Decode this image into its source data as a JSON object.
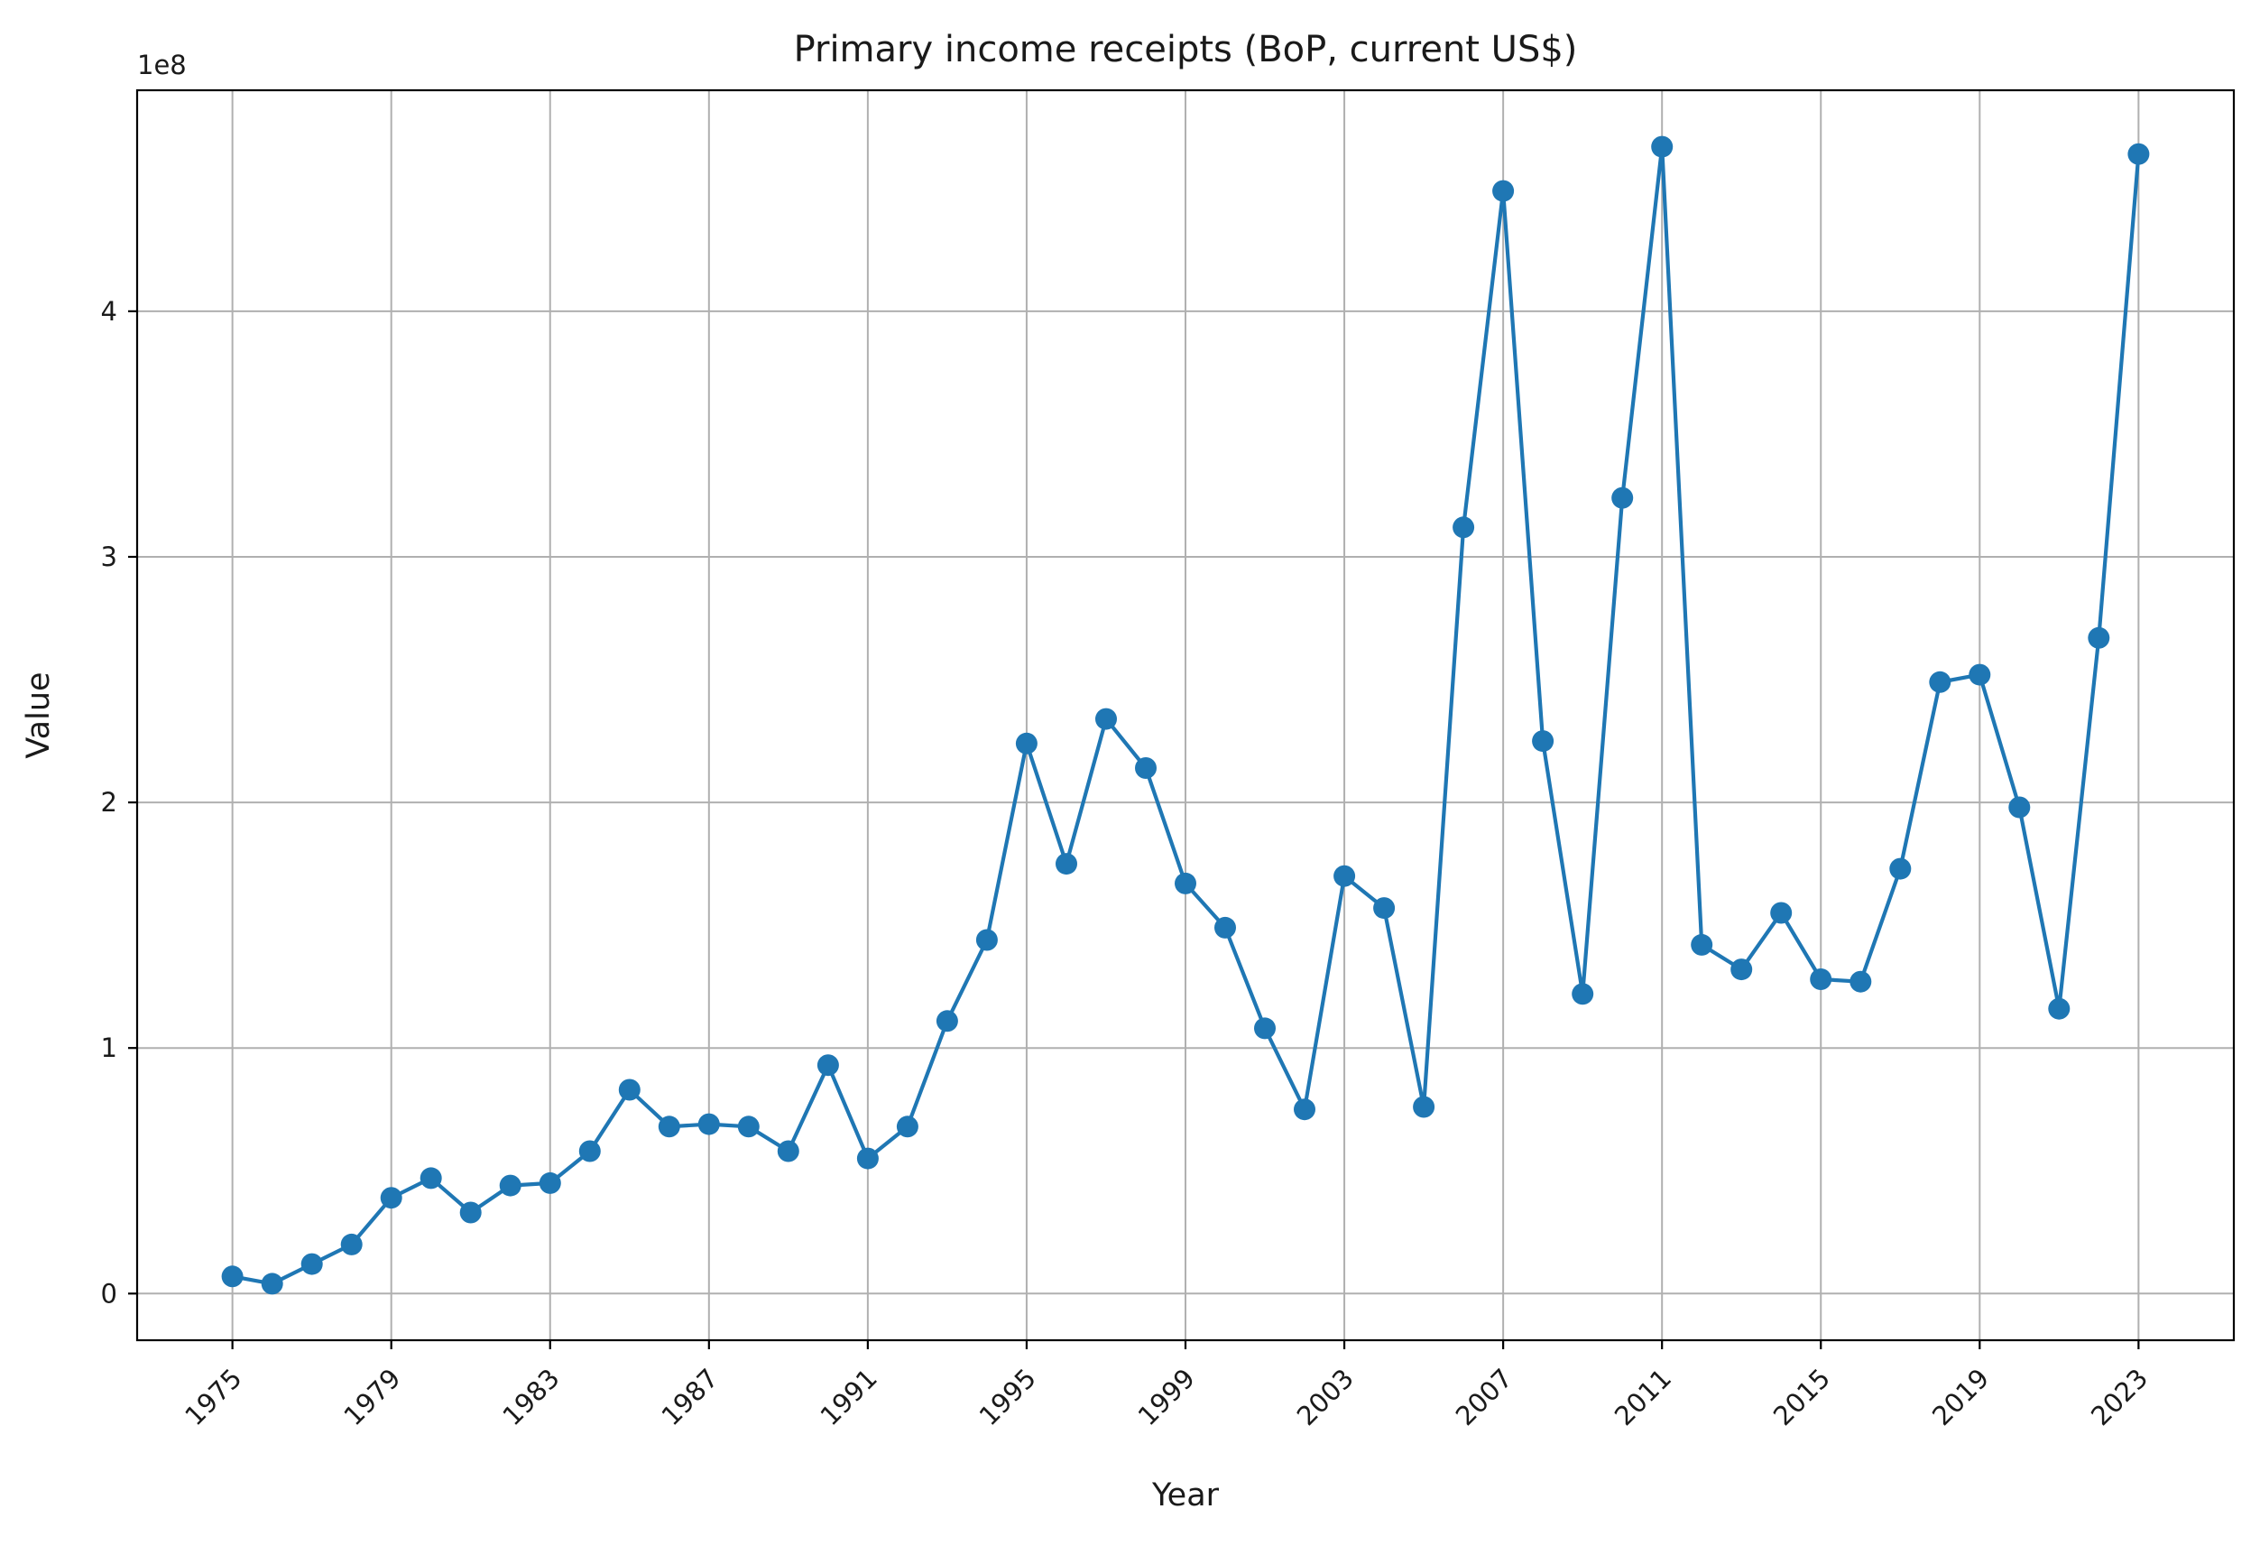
{
  "chart_data": {
    "type": "line",
    "title": "Primary income receipts (BoP, current US$)",
    "xlabel": "Year",
    "ylabel": "Value",
    "y_scale_label": "1e8",
    "y_scale_factor": 100000000,
    "xlim": [
      1972.6,
      2025.4
    ],
    "ylim": [
      -19000000,
      490000000
    ],
    "x_ticks": [
      1975,
      1979,
      1983,
      1987,
      1991,
      1995,
      1999,
      2003,
      2007,
      2011,
      2015,
      2019,
      2023
    ],
    "y_ticks": [
      0,
      100000000,
      200000000,
      300000000,
      400000000
    ],
    "y_tick_labels": [
      "0",
      "1",
      "2",
      "3",
      "4"
    ],
    "grid": true,
    "legend": "none",
    "series": [
      {
        "color": "#1f77b4",
        "marker": "circle",
        "x": [
          1975,
          1976,
          1977,
          1978,
          1979,
          1980,
          1981,
          1982,
          1983,
          1984,
          1985,
          1986,
          1987,
          1988,
          1989,
          1990,
          1991,
          1992,
          1993,
          1994,
          1995,
          1996,
          1997,
          1998,
          1999,
          2000,
          2001,
          2002,
          2003,
          2004,
          2005,
          2006,
          2007,
          2008,
          2009,
          2010,
          2011,
          2012,
          2013,
          2014,
          2015,
          2016,
          2017,
          2018,
          2019,
          2020,
          2021,
          2022,
          2023
        ],
        "values": [
          7000000,
          4000000,
          12000000,
          20000000,
          39000000,
          47000000,
          33000000,
          44000000,
          45000000,
          58000000,
          83000000,
          68000000,
          69000000,
          68000000,
          58000000,
          93000000,
          55000000,
          68000000,
          111000000,
          144000000,
          224000000,
          175000000,
          234000000,
          214000000,
          167000000,
          149000000,
          108000000,
          75000000,
          170000000,
          157000000,
          76000000,
          312000000,
          449000000,
          225000000,
          122000000,
          324000000,
          467000000,
          142000000,
          132000000,
          155000000,
          128000000,
          127000000,
          173000000,
          249000000,
          252000000,
          198000000,
          116000000,
          267000000,
          464000000
        ]
      }
    ]
  }
}
